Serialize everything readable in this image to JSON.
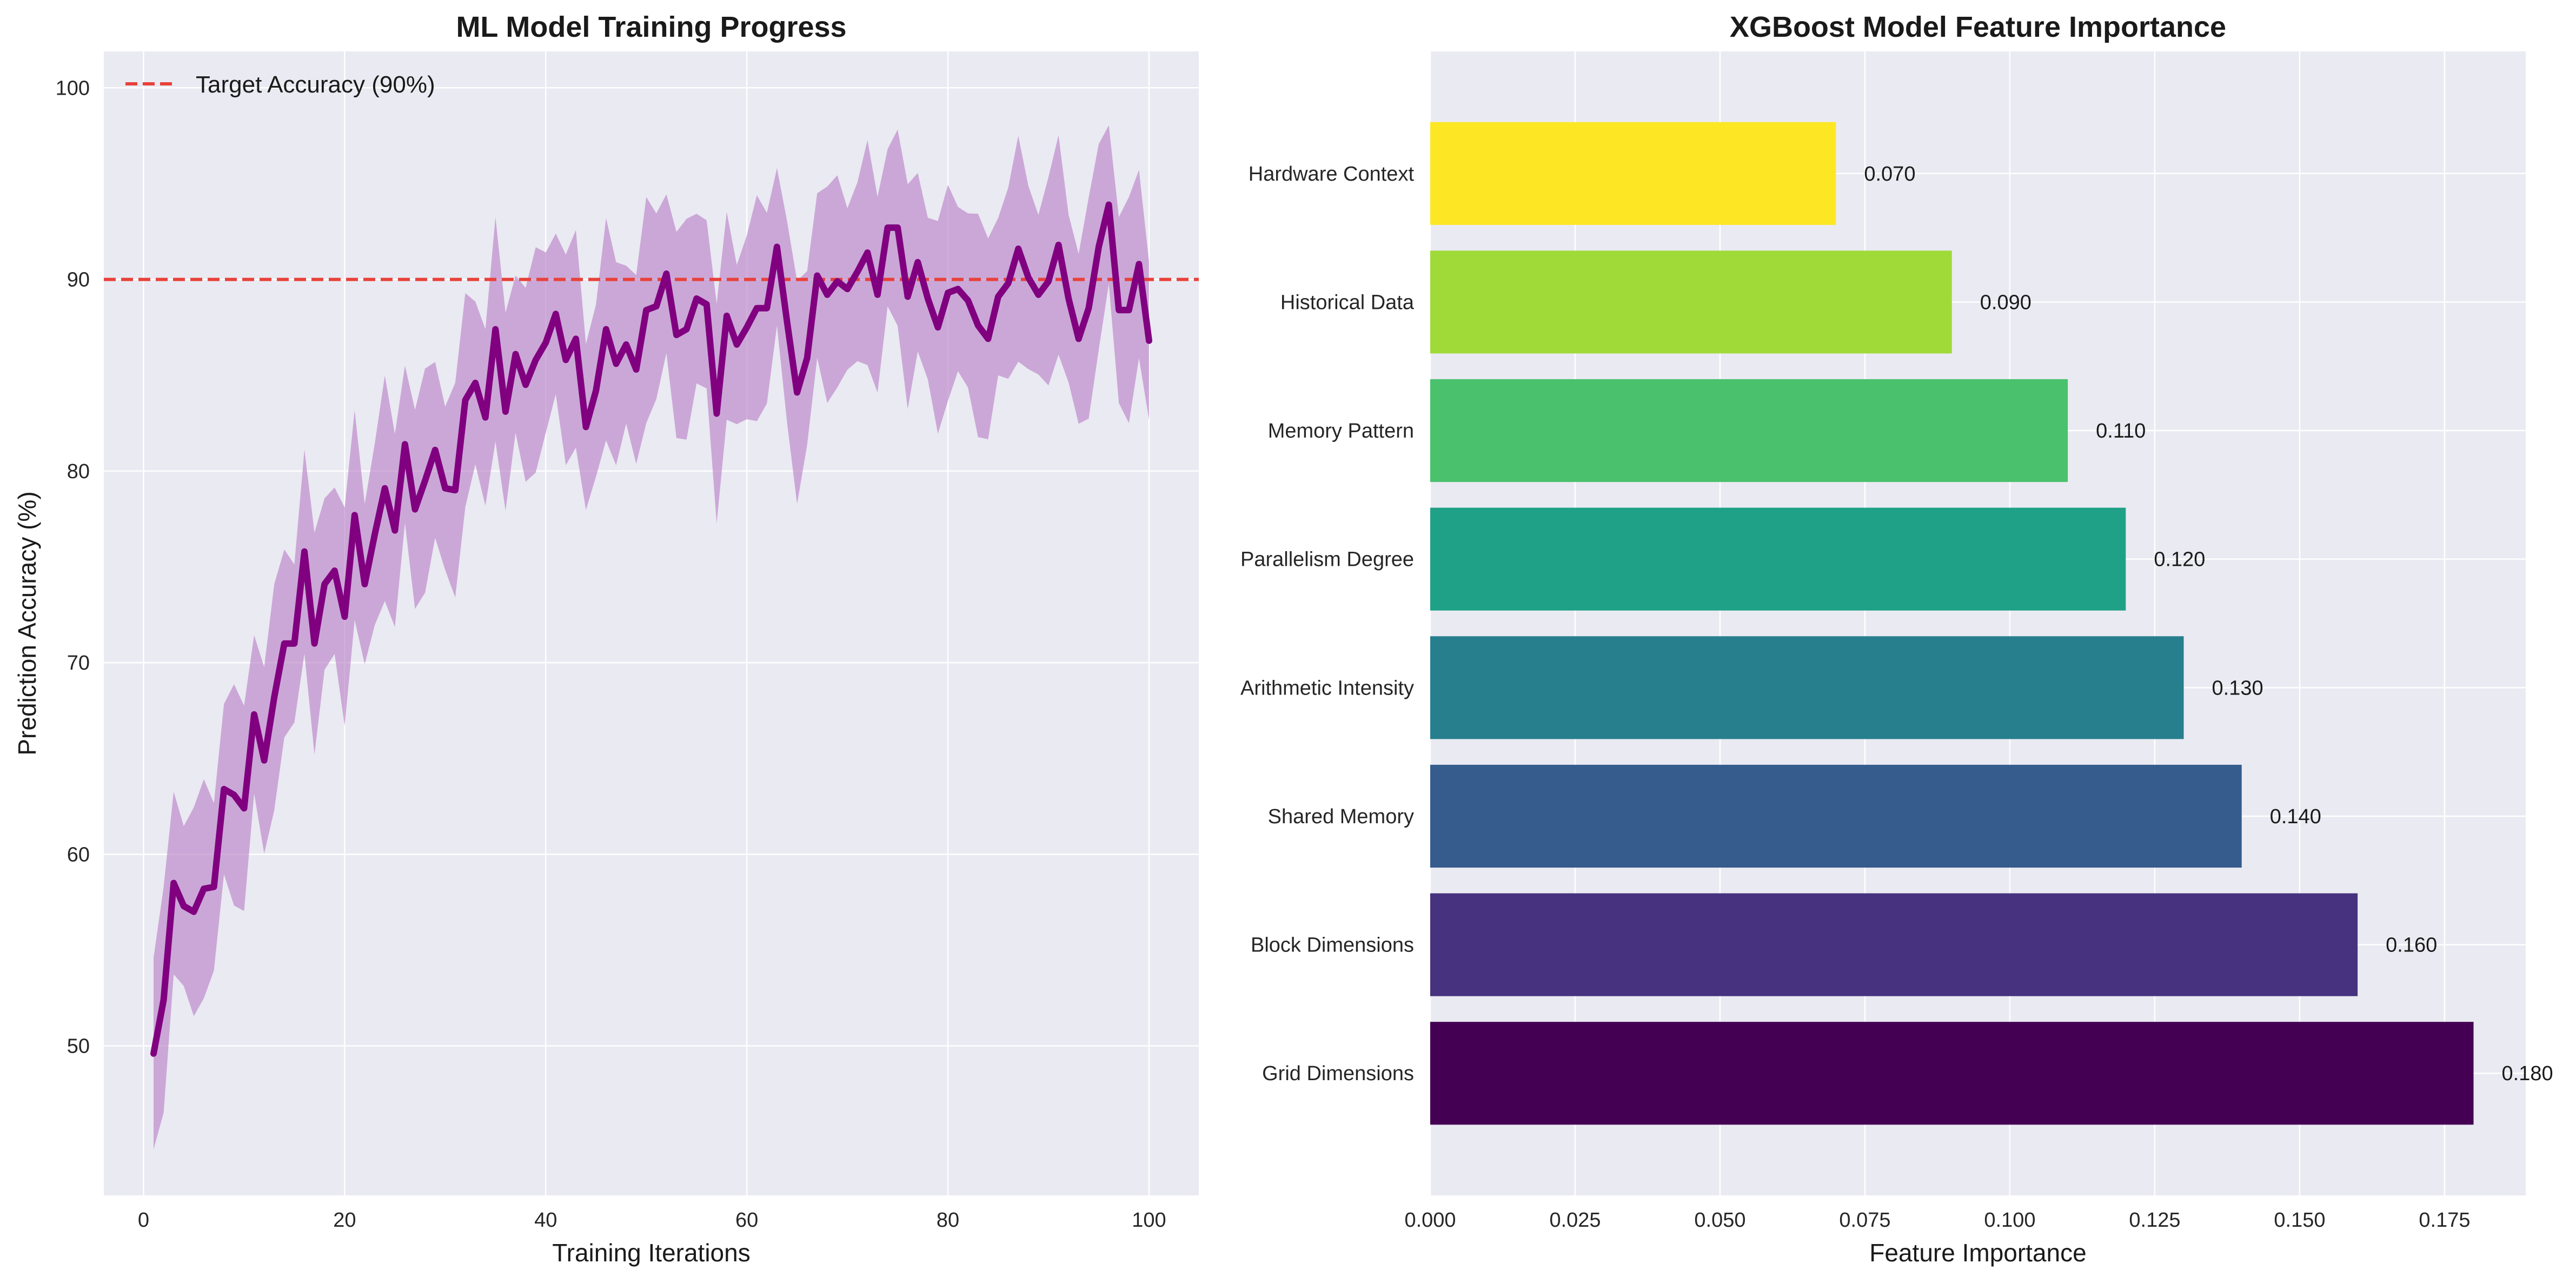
{
  "chart_data": [
    {
      "type": "line",
      "title": "ML Model Training Progress",
      "xlabel": "Training Iterations",
      "ylabel": "Prediction Accuracy (%)",
      "xlim": [
        -3.95,
        104.95
      ],
      "ylim": [
        42.2,
        101.9
      ],
      "xticks": [
        0,
        20,
        40,
        60,
        80,
        100
      ],
      "yticks": [
        50,
        60,
        70,
        80,
        90,
        100
      ],
      "grid": true,
      "legend_position": "top-left",
      "series": [
        {
          "name": "",
          "color": "#800080",
          "band_color": "#ba82c7",
          "band_halfwidth": 5,
          "x": [
            1,
            2,
            3,
            4,
            5,
            6,
            7,
            8,
            9,
            10,
            11,
            12,
            13,
            14,
            15,
            16,
            17,
            18,
            19,
            20,
            21,
            22,
            23,
            24,
            25,
            26,
            27,
            28,
            29,
            30,
            31,
            32,
            33,
            34,
            35,
            36,
            37,
            38,
            39,
            40,
            41,
            42,
            43,
            44,
            45,
            46,
            47,
            48,
            49,
            50,
            51,
            52,
            53,
            54,
            55,
            56,
            57,
            58,
            59,
            60,
            61,
            62,
            63,
            64,
            65,
            66,
            67,
            68,
            69,
            70,
            71,
            72,
            73,
            74,
            75,
            76,
            77,
            78,
            79,
            80,
            81,
            82,
            83,
            84,
            85,
            86,
            87,
            88,
            89,
            90,
            91,
            92,
            93,
            94,
            95,
            96,
            97,
            98,
            99,
            100
          ],
          "values": [
            49.6,
            52.4,
            58.5,
            57.3,
            57.0,
            58.2,
            58.3,
            63.4,
            63.1,
            62.4,
            67.3,
            64.9,
            68.2,
            71.0,
            71.0,
            75.8,
            71.0,
            74.1,
            74.8,
            72.4,
            77.7,
            74.1,
            76.7,
            79.1,
            76.9,
            81.4,
            78.0,
            79.5,
            81.1,
            79.1,
            79.0,
            83.7,
            84.6,
            82.8,
            87.4,
            83.1,
            86.1,
            84.5,
            85.8,
            86.7,
            88.2,
            85.8,
            86.9,
            82.3,
            84.2,
            87.4,
            85.6,
            86.6,
            85.3,
            88.4,
            88.6,
            90.3,
            87.1,
            87.4,
            89.0,
            88.7,
            83.0,
            88.1,
            86.6,
            87.5,
            88.5,
            88.5,
            91.7,
            87.8,
            84.1,
            85.9,
            90.2,
            89.2,
            89.9,
            89.5,
            90.4,
            91.4,
            89.2,
            92.7,
            92.7,
            89.1,
            90.9,
            89.0,
            87.5,
            89.3,
            89.5,
            88.9,
            87.6,
            86.9,
            89.1,
            89.8,
            91.6,
            90.1,
            89.2,
            89.9,
            91.8,
            89.0,
            86.9,
            88.5,
            91.7,
            93.9,
            88.4,
            88.4,
            90.8,
            86.8
          ]
        }
      ],
      "reference_lines": [
        {
          "y": 90,
          "label": "Target Accuracy (90%)",
          "color": "#e8413a",
          "style": "dashed"
        }
      ]
    },
    {
      "type": "bar",
      "orientation": "horizontal",
      "title": "XGBoost Model Feature Importance",
      "xlabel": "Feature Importance",
      "ylabel": "",
      "xlim": [
        0,
        0.189
      ],
      "xticks": [
        0.0,
        0.025,
        0.05,
        0.075,
        0.1,
        0.125,
        0.15,
        0.175
      ],
      "xtick_labels": [
        "0.000",
        "0.025",
        "0.050",
        "0.075",
        "0.100",
        "0.125",
        "0.150",
        "0.175"
      ],
      "grid": true,
      "categories": [
        "Grid Dimensions",
        "Block Dimensions",
        "Shared Memory",
        "Arithmetic Intensity",
        "Parallelism Degree",
        "Memory Pattern",
        "Historical Data",
        "Hardware Context"
      ],
      "values": [
        0.18,
        0.16,
        0.14,
        0.13,
        0.12,
        0.11,
        0.09,
        0.07
      ],
      "data_labels": [
        "0.180",
        "0.160",
        "0.140",
        "0.130",
        "0.120",
        "0.110",
        "0.090",
        "0.070"
      ],
      "colors": [
        "#440154",
        "#46327e",
        "#365c8d",
        "#277f8e",
        "#1fa187",
        "#4ac16d",
        "#a0da39",
        "#fde725"
      ]
    }
  ]
}
